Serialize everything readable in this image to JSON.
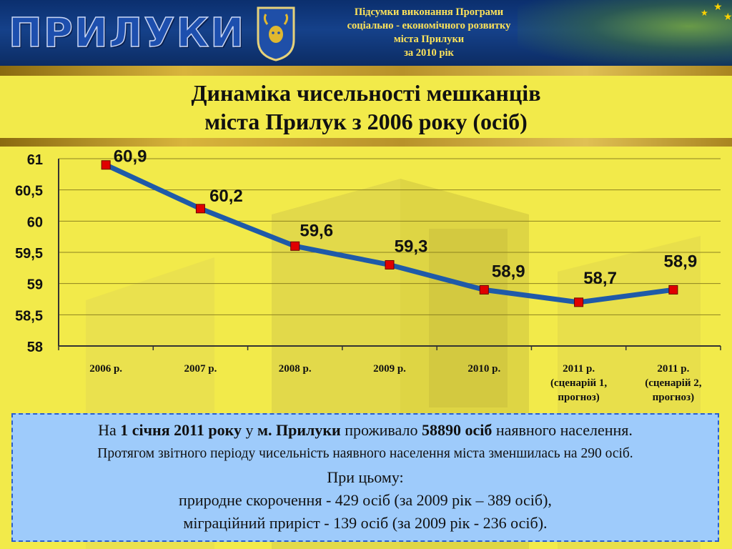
{
  "header": {
    "logo_text": "ПРИЛУКИ",
    "title_lines": [
      "Підсумки виконання Програми",
      "соціально - економічного розвитку",
      "міста Прилуки",
      "за 2010 рік"
    ]
  },
  "slide_title": {
    "line1": "Динаміка чисельності мешканців",
    "line2": "міста Прилук з 2006 року (осіб)"
  },
  "chart_data": {
    "type": "line",
    "categories": [
      [
        "2006 р."
      ],
      [
        "2007 р."
      ],
      [
        "2008 р."
      ],
      [
        "2009 р."
      ],
      [
        "2010 р."
      ],
      [
        "2011 р.",
        "(сценарій 1,",
        "прогноз)"
      ],
      [
        "2011 р.",
        "(сценарій 2,",
        "прогноз)"
      ]
    ],
    "values": [
      60.9,
      60.2,
      59.6,
      59.3,
      58.9,
      58.7,
      58.9
    ],
    "data_labels": [
      "60,9",
      "60,2",
      "59,6",
      "59,3",
      "58,9",
      "58,7",
      "58,9"
    ],
    "y_ticks": [
      "58",
      "58,5",
      "59",
      "59,5",
      "60",
      "60,5",
      "61"
    ],
    "ylim": [
      58,
      61
    ],
    "ystep": 0.5,
    "grid": true,
    "line_color": "#1f5aa8",
    "marker_color": "#e00000"
  },
  "info": {
    "l1_a": "На ",
    "l1_b": "1 січня 2011 року",
    "l1_c": " у ",
    "l1_d": "м. Прилуки",
    "l1_e": " проживало ",
    "l1_f": "58890 осіб",
    "l1_g": " наявного населення.",
    "l2": "Протягом звітного періоду чисельність наявного населення міста зменшилась на 290 осіб.",
    "l3": "При цьому:",
    "l4": "природне скорочення - 429 осіб (за 2009 рік – 389 осіб),",
    "l5": "міграційний приріст - 139 осіб (за 2009 рік - 236 осіб)."
  },
  "colors": {
    "background": "#f2ea4a",
    "header": "#15418a",
    "header_text": "#ffe45a",
    "info_box": "#9ecbfb"
  }
}
